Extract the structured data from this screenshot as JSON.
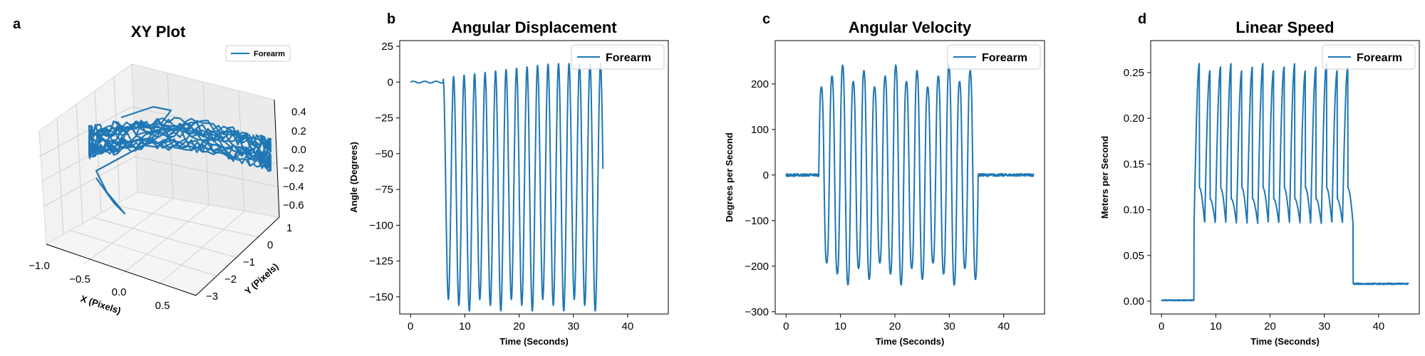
{
  "colors": {
    "series": "#1f77b4",
    "axes": "#000000",
    "pane": "#f2f2f2",
    "grid": "#d0d0d0",
    "legend_border": "#cccccc"
  },
  "chart_data": [
    {
      "panel": "a",
      "type": "line3d",
      "title": "XY Plot",
      "xlabel": "X (Pixels)",
      "ylabel": "Y (Pixels)",
      "zlabel": "",
      "x_ticks": [
        "−1.0",
        "−0.5",
        "0.0",
        "0.5"
      ],
      "y_ticks": [
        "1",
        "0",
        "−1",
        "−2",
        "−3"
      ],
      "z_ticks": [
        "0.4",
        "0.2",
        "0.0",
        "−0.2",
        "−0.4",
        "−0.6"
      ],
      "legend": "top-right",
      "series": [
        {
          "name": "Forearm"
        }
      ]
    },
    {
      "panel": "b",
      "type": "line",
      "title": "Angular Displacement",
      "xlabel": "Time (Seconds)",
      "ylabel": "Angle (Degrees)",
      "xlim": [
        -2,
        47.5
      ],
      "ylim": [
        -162,
        29
      ],
      "xticks": [
        0,
        10,
        20,
        30,
        40
      ],
      "yticks": [
        25,
        0,
        -25,
        -50,
        -75,
        -100,
        -125,
        -150
      ],
      "legend": "top-right",
      "signal": {
        "t_start": 0,
        "t_end": 35.5,
        "active_start": 6.0,
        "active_end": 35.0,
        "peaks": 15,
        "rest": 0,
        "max": 15,
        "min": -152
      },
      "series": [
        {
          "name": "Forearm"
        }
      ]
    },
    {
      "panel": "c",
      "type": "line",
      "title": "Angular Velocity",
      "xlabel": "Time (Seconds)",
      "ylabel": "Degrees per Second",
      "xlim": [
        -2,
        47.5
      ],
      "ylim": [
        -305,
        295
      ],
      "xticks": [
        0,
        10,
        20,
        30,
        40
      ],
      "yticks": [
        200,
        100,
        0,
        -100,
        -200,
        -300
      ],
      "legend": "top-right",
      "signal": {
        "t_start": 0,
        "t_end": 45.5,
        "active_start": 6.0,
        "active_end": 35.3,
        "peaks": 15,
        "rest": 0,
        "max": 245,
        "min": -250
      },
      "series": [
        {
          "name": "Forearm"
        }
      ]
    },
    {
      "panel": "d",
      "type": "line",
      "title": "Linear Speed",
      "xlabel": "Time (Seconds)",
      "ylabel": "Meters per Second",
      "xlim": [
        -2,
        47.5
      ],
      "ylim": [
        -0.014,
        0.285
      ],
      "xticks": [
        0,
        10,
        20,
        30,
        40
      ],
      "yticks": [
        0.25,
        0.2,
        0.15,
        0.1,
        0.05,
        0.0
      ],
      "ytick_labels": [
        "0.25",
        "0.20",
        "0.15",
        "0.10",
        "0.05",
        "0.00"
      ],
      "legend": "top-right",
      "signal": {
        "t_start": 0,
        "t_end": 45.5,
        "active_start": 6.0,
        "active_end": 35.3,
        "peaks": 30,
        "rest_before": 0.001,
        "rest_after": 0.019,
        "max": 0.26,
        "min": 0.085
      },
      "series": [
        {
          "name": "Forearm"
        }
      ]
    }
  ]
}
